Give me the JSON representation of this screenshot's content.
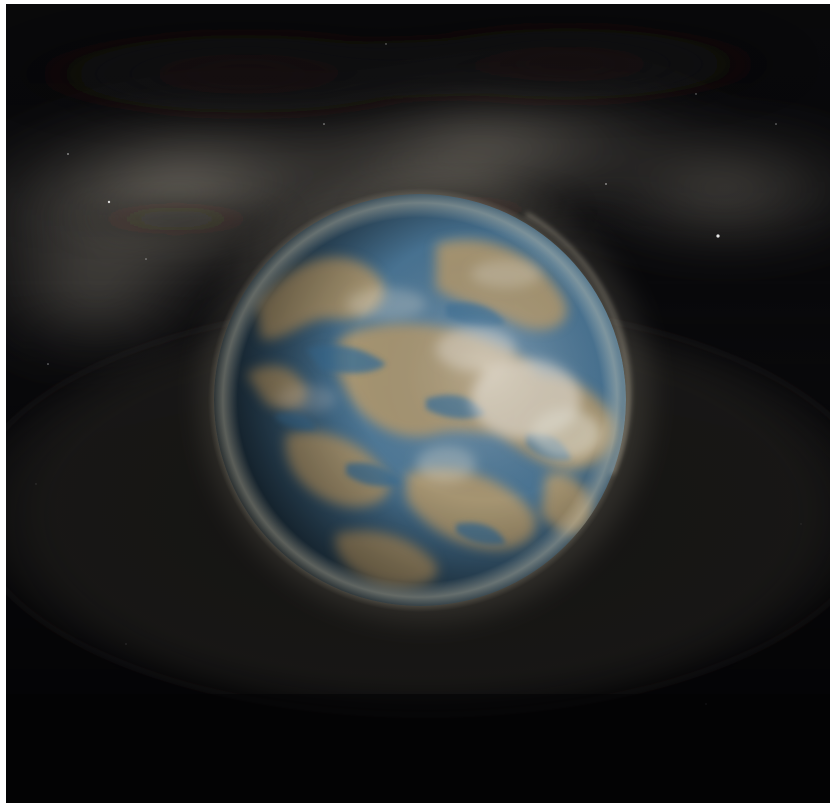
{
  "image": {
    "subject": "planet",
    "colors": {
      "space": "#060608",
      "milky_way": "#9a9488",
      "ocean": "#3d6f95",
      "land": "#b59a6c",
      "cloud": "#e6e1d6"
    }
  }
}
